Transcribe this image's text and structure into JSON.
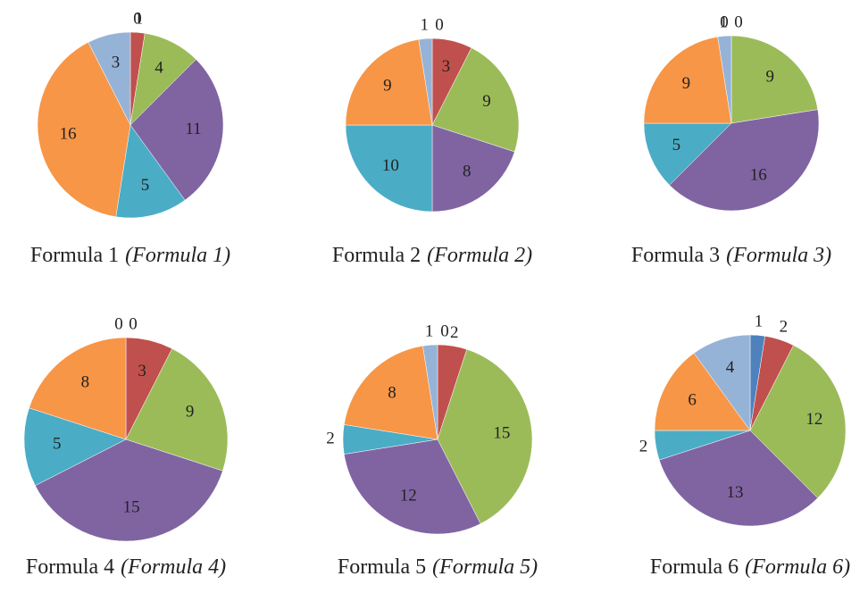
{
  "chart_data": [
    {
      "type": "pie",
      "title": "Formula 1",
      "subtitle": "(Formula 1)",
      "values": [
        0,
        1,
        4,
        11,
        5,
        16,
        3
      ],
      "colors": [
        "#4f81bd",
        "#c0504d",
        "#9bbb59",
        "#8064a2",
        "#4bacc6",
        "#f79646",
        "#95b3d7"
      ]
    },
    {
      "type": "pie",
      "title": "Formula 2",
      "subtitle": "(Formula 2)",
      "values": [
        0,
        3,
        9,
        8,
        10,
        9,
        1
      ],
      "colors": [
        "#4f81bd",
        "#c0504d",
        "#9bbb59",
        "#8064a2",
        "#4bacc6",
        "#f79646",
        "#95b3d7"
      ]
    },
    {
      "type": "pie",
      "title": "Formula 3",
      "subtitle": "(Formula 3)",
      "values": [
        0,
        0,
        9,
        16,
        5,
        9,
        1
      ],
      "colors": [
        "#4f81bd",
        "#c0504d",
        "#9bbb59",
        "#8064a2",
        "#4bacc6",
        "#f79646",
        "#95b3d7"
      ]
    },
    {
      "type": "pie",
      "title": "Formula 4",
      "subtitle": "(Formula 4)",
      "values": [
        0,
        3,
        9,
        15,
        5,
        8,
        0
      ],
      "colors": [
        "#4f81bd",
        "#c0504d",
        "#9bbb59",
        "#8064a2",
        "#4bacc6",
        "#f79646",
        "#95b3d7"
      ]
    },
    {
      "type": "pie",
      "title": "Formula 5",
      "subtitle": "(Formula 5)",
      "values": [
        0,
        2,
        15,
        12,
        2,
        8,
        1
      ],
      "colors": [
        "#4f81bd",
        "#c0504d",
        "#9bbb59",
        "#8064a2",
        "#4bacc6",
        "#f79646",
        "#95b3d7"
      ]
    },
    {
      "type": "pie",
      "title": "Formula 6",
      "subtitle": "(Formula 6)",
      "values": [
        1,
        2,
        12,
        13,
        2,
        6,
        4
      ],
      "colors": [
        "#4f81bd",
        "#c0504d",
        "#9bbb59",
        "#8064a2",
        "#4bacc6",
        "#f79646",
        "#95b3d7"
      ]
    }
  ]
}
